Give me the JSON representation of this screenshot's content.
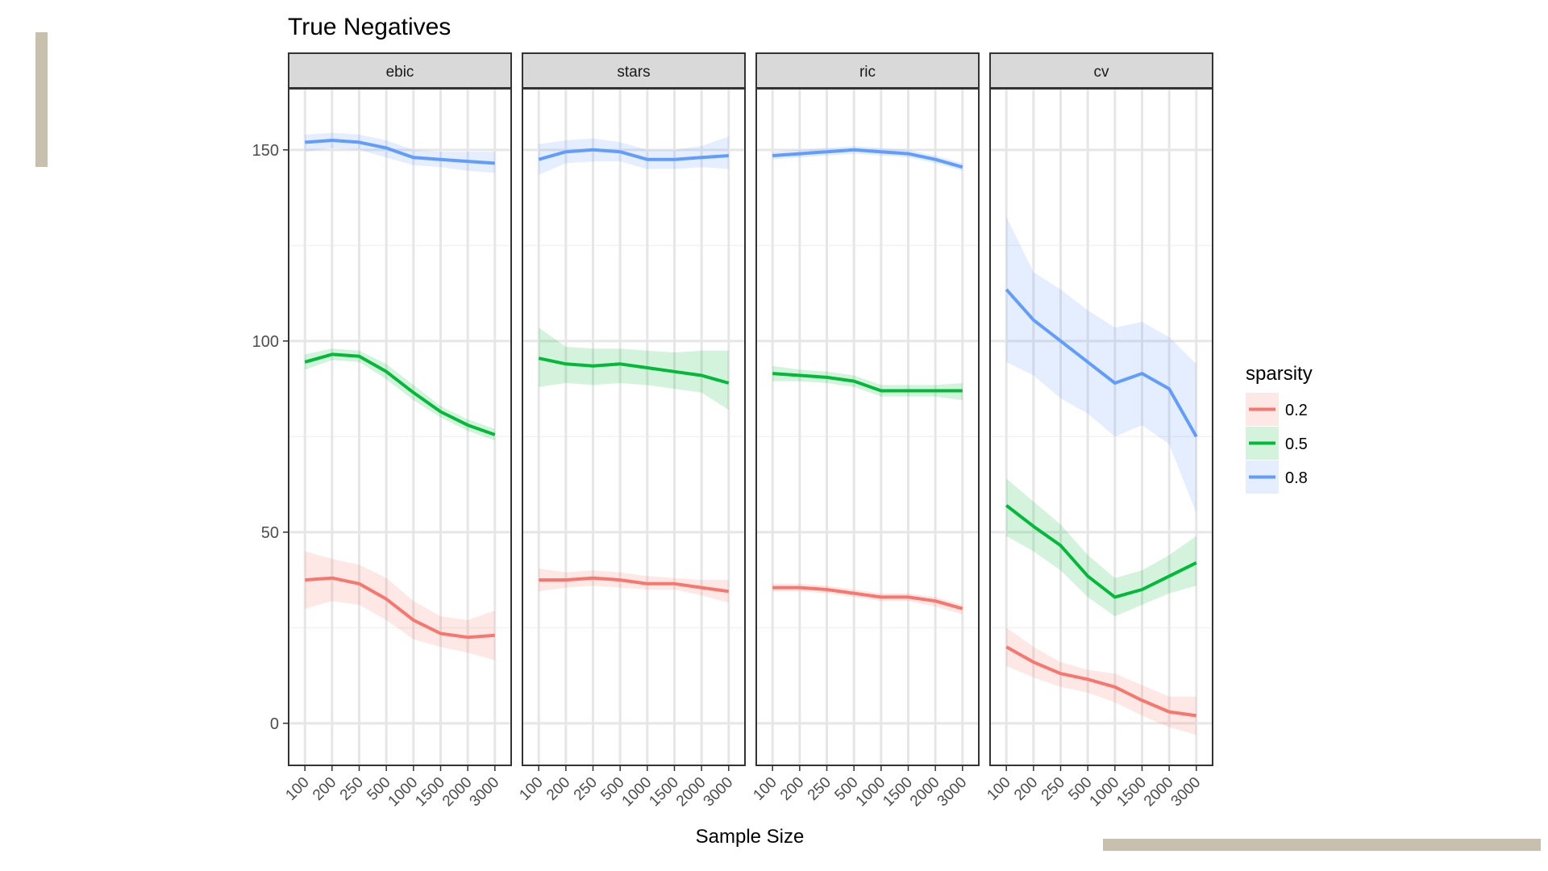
{
  "chart_data": {
    "type": "line",
    "title": "True Negatives",
    "xlabel": "Sample Size",
    "ylabel": "",
    "categories": [
      "100",
      "200",
      "250",
      "500",
      "1000",
      "1500",
      "2000",
      "3000"
    ],
    "ylim": [
      -11,
      166
    ],
    "yticks": [
      0,
      50,
      100,
      150
    ],
    "grid": true,
    "legend": {
      "title": "sparsity",
      "position": "right"
    },
    "colors": {
      "0.2": "#f8766d",
      "0.5": "#00ba38",
      "0.8": "#619cff",
      "background_bar": "#c8c0ae"
    },
    "panels": [
      {
        "name": "ebic",
        "series": [
          {
            "name": "0.2",
            "values": [
              37.5,
              38,
              36.5,
              32.5,
              27,
              23.5,
              22.5,
              23
            ],
            "lower": [
              30,
              32,
              31,
              27,
              22,
              20,
              18.5,
              16.5
            ],
            "upper": [
              45,
              43,
              41.5,
              38,
              32,
              28,
              27,
              29.5
            ]
          },
          {
            "name": "0.5",
            "values": [
              94.5,
              96.5,
              96,
              92,
              86.5,
              81.5,
              78,
              75.5
            ],
            "lower": [
              92.5,
              95,
              94.5,
              90,
              84.5,
              80,
              76.5,
              74
            ],
            "upper": [
              96.5,
              98,
              97.5,
              94,
              88.5,
              83,
              79.5,
              77
            ]
          },
          {
            "name": "0.8",
            "values": [
              152,
              152.5,
              152,
              150.5,
              148,
              147.5,
              147,
              146.5
            ],
            "lower": [
              149.5,
              150.5,
              150,
              148,
              146,
              145.5,
              144.5,
              144
            ],
            "upper": [
              154,
              154.5,
              154,
              152.5,
              150,
              149.5,
              149.5,
              149.5
            ]
          }
        ]
      },
      {
        "name": "stars",
        "series": [
          {
            "name": "0.2",
            "values": [
              37.5,
              37.5,
              38,
              37.5,
              36.5,
              36.5,
              35.5,
              34.5
            ],
            "lower": [
              34.5,
              35.5,
              36,
              35.5,
              35,
              35,
              33.5,
              31.5
            ],
            "upper": [
              40.5,
              39.5,
              40,
              39.5,
              38.5,
              38,
              37.5,
              37.5
            ]
          },
          {
            "name": "0.5",
            "values": [
              95.5,
              94,
              93.5,
              94,
              93,
              92,
              91,
              89
            ],
            "lower": [
              88,
              89,
              88.5,
              89,
              88.5,
              87.5,
              86.5,
              82
            ],
            "upper": [
              103.5,
              98.5,
              98,
              98,
              97.5,
              97,
              97.5,
              97.5
            ]
          },
          {
            "name": "0.8",
            "values": [
              147.5,
              149.5,
              150,
              149.5,
              147.5,
              147.5,
              148,
              148.5
            ],
            "lower": [
              143.5,
              146.5,
              147,
              147,
              145,
              145,
              145.5,
              145
            ],
            "upper": [
              151.5,
              152.5,
              153,
              152,
              150,
              150,
              151,
              153.5
            ]
          }
        ]
      },
      {
        "name": "ric",
        "series": [
          {
            "name": "0.2",
            "values": [
              35.5,
              35.5,
              35,
              34,
              33,
              33,
              32,
              30
            ],
            "lower": [
              34.5,
              34.5,
              34,
              33,
              32,
              32,
              30.5,
              28.5
            ],
            "upper": [
              36.5,
              36.5,
              36,
              35,
              34,
              34,
              33,
              31
            ]
          },
          {
            "name": "0.5",
            "values": [
              91.5,
              91,
              90.5,
              89.5,
              87,
              87,
              87,
              87
            ],
            "lower": [
              89.5,
              89.5,
              89,
              88,
              85.5,
              85.5,
              85.5,
              84.5
            ],
            "upper": [
              93.5,
              92.5,
              92,
              91,
              88.5,
              88.5,
              88.5,
              89
            ]
          },
          {
            "name": "0.8",
            "values": [
              148.5,
              149,
              149.5,
              150,
              149.5,
              149,
              147.5,
              145.5
            ],
            "lower": [
              147.5,
              148,
              148.5,
              149,
              148.5,
              148,
              146.5,
              144.5
            ],
            "upper": [
              149.5,
              150,
              150.5,
              151,
              150.5,
              150,
              148.5,
              146.5
            ]
          }
        ]
      },
      {
        "name": "cv",
        "series": [
          {
            "name": "0.2",
            "values": [
              20,
              16,
              13,
              11.5,
              9.5,
              6,
              3,
              2
            ],
            "lower": [
              15,
              12,
              9.5,
              8,
              5.5,
              2,
              -1,
              -3
            ],
            "upper": [
              25,
              20,
              16,
              14,
              13,
              10,
              7,
              7
            ]
          },
          {
            "name": "0.5",
            "values": [
              57,
              51.5,
              46.5,
              38.5,
              33,
              35,
              38.5,
              42
            ],
            "lower": [
              49,
              45,
              40,
              33,
              28,
              31,
              34,
              36
            ],
            "upper": [
              64,
              58,
              52,
              44,
              38,
              40,
              44,
              49
            ]
          },
          {
            "name": "0.8",
            "values": [
              113.5,
              105.5,
              100,
              94.5,
              89,
              91.5,
              87.5,
              75
            ],
            "lower": [
              94.5,
              91,
              85,
              81,
              75,
              78,
              73,
              55
            ],
            "upper": [
              132.5,
              118,
              113.5,
              108,
              103.5,
              105,
              101,
              94
            ]
          }
        ]
      }
    ]
  }
}
